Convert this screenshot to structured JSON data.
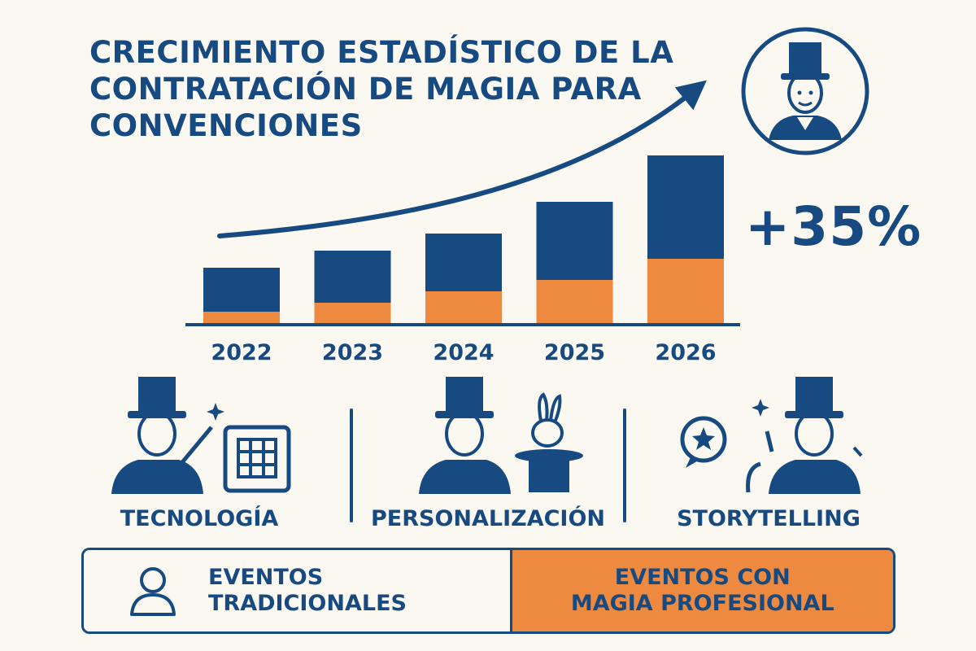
{
  "title_lines": [
    "Crecimiento estadístico de la",
    "contratación de magia para",
    "convenciones"
  ],
  "growth_label": "+35%",
  "colors": {
    "navy": "#164a80",
    "orange": "#ee8a40",
    "background": "#fbf8f2"
  },
  "chart_data": {
    "type": "bar",
    "stacked": true,
    "categories": [
      "2022",
      "2023",
      "2024",
      "2025",
      "2026"
    ],
    "series": [
      {
        "color": "#ee8a40",
        "values": [
          14,
          25,
          39,
          53,
          79
        ]
      },
      {
        "color": "#164a80",
        "values": [
          54,
          64,
          71,
          96,
          127
        ]
      }
    ],
    "ylim": [
      0,
      220
    ],
    "grid": false,
    "trend_arrow": true
  },
  "features": [
    {
      "label": "Tecnología",
      "icon": "magician-wand-grid-icon"
    },
    {
      "label": "Personalización",
      "icon": "magician-rabbit-hat-icon"
    },
    {
      "label": "Storytelling",
      "icon": "magician-speech-star-icon"
    }
  ],
  "comparison": {
    "left": {
      "line1": "Eventos",
      "line2": "tradicionales",
      "icon": "person-icon"
    },
    "right": {
      "line1": "Eventos con",
      "line2": "magia profesional"
    }
  }
}
